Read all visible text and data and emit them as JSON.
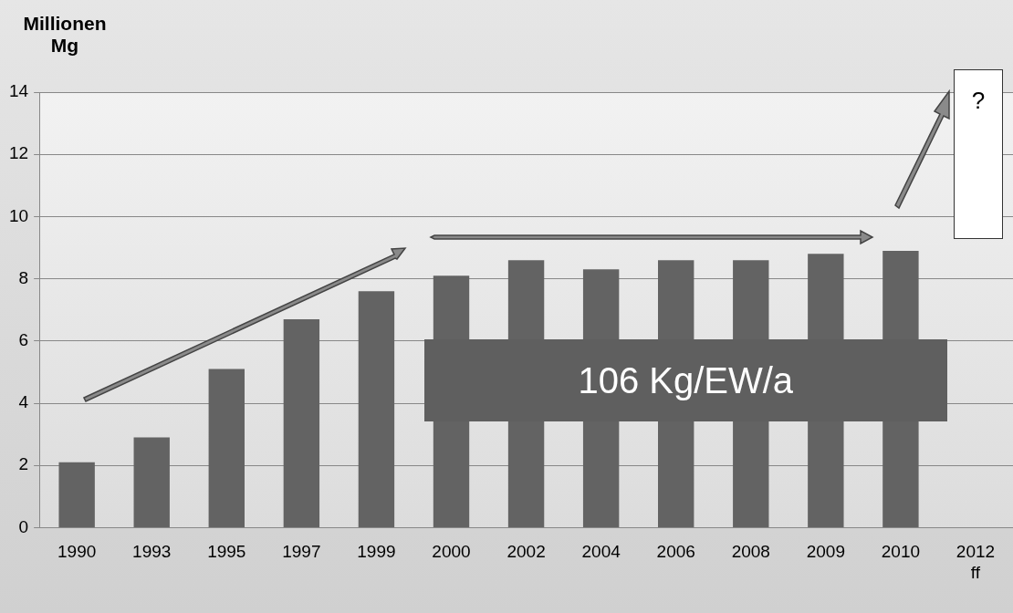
{
  "chart_data": {
    "type": "bar",
    "ylabel": "Millionen Mg",
    "categories": [
      "1990",
      "1993",
      "1995",
      "1997",
      "1999",
      "2000",
      "2002",
      "2004",
      "2006",
      "2008",
      "2009",
      "2010",
      "2012 ff"
    ],
    "values": [
      2.1,
      2.9,
      5.1,
      6.7,
      7.6,
      8.1,
      8.6,
      8.3,
      8.6,
      8.6,
      8.8,
      8.9,
      null
    ],
    "color": "#636363",
    "ylim": [
      0,
      14
    ],
    "yticks": [
      0,
      2,
      4,
      6,
      8,
      10,
      12,
      14
    ],
    "grid": "y",
    "legend": false,
    "annotations": [
      "106 Kg/EW/a",
      "?"
    ]
  }
}
